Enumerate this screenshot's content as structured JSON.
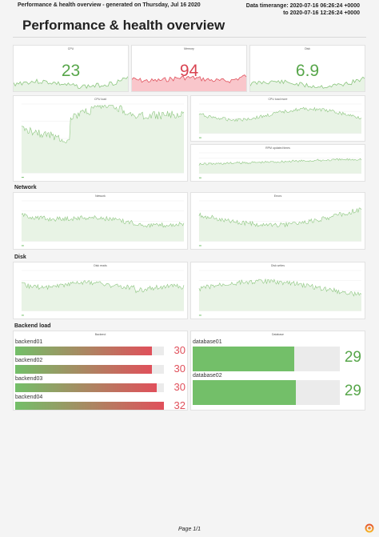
{
  "header": {
    "report_line": "Performance & health overview - generated on Thursday, Jul 16 2020",
    "timerange_line1": "Data timerange: 2020-07-16 06:26:24 +0000",
    "timerange_line2": "to 2020-07-16 12:26:24 +0000"
  },
  "title": "Performance & health overview",
  "colors": {
    "green": "#73bf69",
    "red": "#e0505b",
    "red_fill": "#f9c6cb",
    "green_fill": "#e8f3e5",
    "green_line": "#8cc67f"
  },
  "stats": [
    {
      "title": "CPU",
      "value": "23",
      "color": "#57a64a"
    },
    {
      "title": "Memory",
      "value": "94",
      "color": "#d94452"
    },
    {
      "title": "Disk",
      "value": "6.9",
      "color": "#57a64a"
    }
  ],
  "graphs": {
    "cpu_load": {
      "title": "CPU load"
    },
    "cpu_load_more": {
      "title": "CPU load more"
    },
    "rpm_updated_times": {
      "title": "RPM updated times"
    },
    "network": {
      "title": "Network"
    },
    "errors": {
      "title": "Errors"
    },
    "disk_reads": {
      "title": "Disk reads"
    },
    "disk_writes": {
      "title": "Disk writes"
    }
  },
  "sections": {
    "network": "Network",
    "disk": "Disk",
    "backend_load": "Backend load"
  },
  "backend_panel": {
    "title": "Backend",
    "items": [
      {
        "label": "backend01",
        "value": "30",
        "fraction": 0.92
      },
      {
        "label": "backend02",
        "value": "30",
        "fraction": 0.92
      },
      {
        "label": "backend03",
        "value": "30",
        "fraction": 0.95
      },
      {
        "label": "backend04",
        "value": "32",
        "fraction": 1.0
      }
    ]
  },
  "database_panel": {
    "title": "Database",
    "items": [
      {
        "label": "database01",
        "value": "29",
        "fraction": 0.69
      },
      {
        "label": "database02",
        "value": "29",
        "fraction": 0.7
      }
    ]
  },
  "footer": {
    "page": "Page 1/1"
  },
  "icons": {
    "logo": "grafana-logo-icon"
  }
}
